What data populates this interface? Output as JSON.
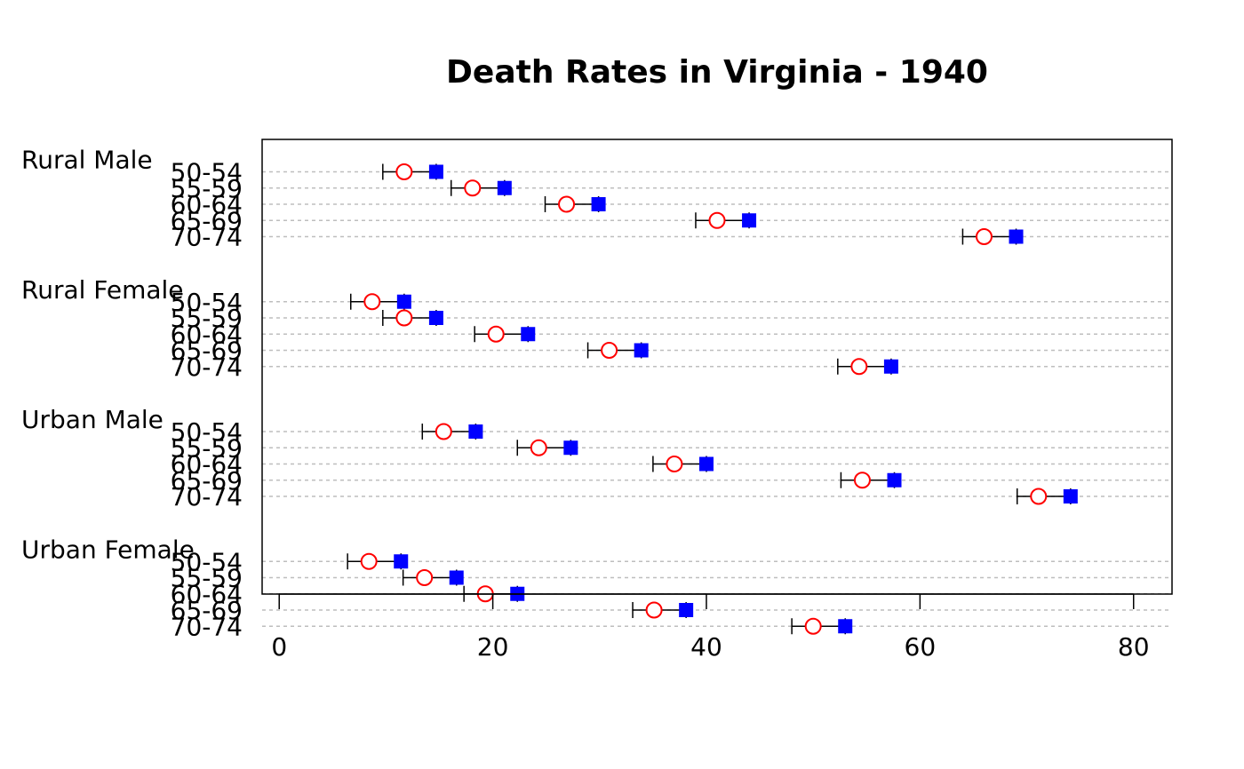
{
  "chart_data": {
    "type": "scatter",
    "title": "Death Rates in Virginia - 1940",
    "xlabel": "",
    "ylabel": "",
    "xlim": [
      -1.6,
      83.6
    ],
    "xticks": [
      0,
      20,
      40,
      60,
      80
    ],
    "grid": "horizontal-dashed",
    "legend": "none",
    "markers": {
      "point": "circle",
      "point_color": "#ff0000",
      "upper": "square",
      "upper_color": "#0000ff"
    },
    "groups": [
      {
        "label": "Rural Male",
        "rows": [
          {
            "label": "50-54",
            "value": 11.7,
            "lower": 9.7,
            "upper": 14.7
          },
          {
            "label": "55-59",
            "value": 18.1,
            "lower": 16.1,
            "upper": 21.1
          },
          {
            "label": "60-64",
            "value": 26.9,
            "lower": 24.9,
            "upper": 29.9
          },
          {
            "label": "65-69",
            "value": 41.0,
            "lower": 39.0,
            "upper": 44.0
          },
          {
            "label": "70-74",
            "value": 66.0,
            "lower": 64.0,
            "upper": 69.0
          }
        ]
      },
      {
        "label": "Rural Female",
        "rows": [
          {
            "label": "50-54",
            "value": 8.7,
            "lower": 6.7,
            "upper": 11.7
          },
          {
            "label": "55-59",
            "value": 11.7,
            "lower": 9.7,
            "upper": 14.7
          },
          {
            "label": "60-64",
            "value": 20.3,
            "lower": 18.3,
            "upper": 23.3
          },
          {
            "label": "65-69",
            "value": 30.9,
            "lower": 28.9,
            "upper": 33.9
          },
          {
            "label": "70-74",
            "value": 54.3,
            "lower": 52.3,
            "upper": 57.3
          }
        ]
      },
      {
        "label": "Urban Male",
        "rows": [
          {
            "label": "50-54",
            "value": 15.4,
            "lower": 13.4,
            "upper": 18.4
          },
          {
            "label": "55-59",
            "value": 24.3,
            "lower": 22.3,
            "upper": 27.3
          },
          {
            "label": "60-64",
            "value": 37.0,
            "lower": 35.0,
            "upper": 40.0
          },
          {
            "label": "65-69",
            "value": 54.6,
            "lower": 52.6,
            "upper": 57.6
          },
          {
            "label": "70-74",
            "value": 71.1,
            "lower": 69.1,
            "upper": 74.1
          }
        ]
      },
      {
        "label": "Urban Female",
        "rows": [
          {
            "label": "50-54",
            "value": 8.4,
            "lower": 6.4,
            "upper": 11.4
          },
          {
            "label": "55-59",
            "value": 13.6,
            "lower": 11.6,
            "upper": 16.6
          },
          {
            "label": "60-64",
            "value": 19.3,
            "lower": 17.3,
            "upper": 22.3
          },
          {
            "label": "65-69",
            "value": 35.1,
            "lower": 33.1,
            "upper": 38.1
          },
          {
            "label": "70-74",
            "value": 50.0,
            "lower": 48.0,
            "upper": 53.0
          }
        ]
      }
    ]
  }
}
